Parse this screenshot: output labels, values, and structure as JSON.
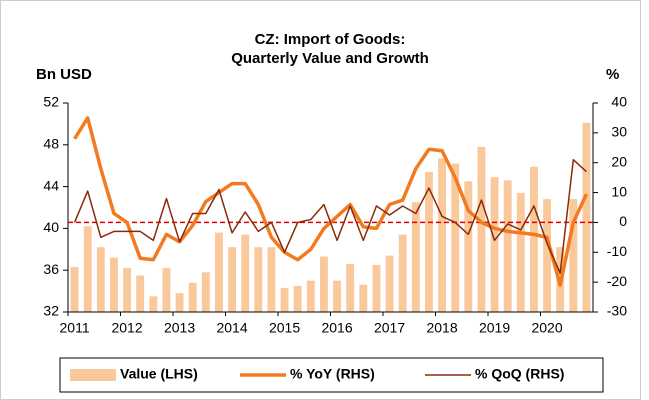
{
  "chart_data": {
    "type": "bar_line",
    "title": [
      "CZ: Import of Goods:",
      "Quarterly Value and Growth"
    ],
    "y_label": "Bn USD",
    "y2_label": "%",
    "categories": [
      "2011",
      null,
      null,
      null,
      "2012",
      null,
      null,
      null,
      "2013",
      null,
      null,
      null,
      "2014",
      null,
      null,
      null,
      "2015",
      null,
      null,
      null,
      "2016",
      null,
      null,
      null,
      "2017",
      null,
      null,
      null,
      "2018",
      null,
      null,
      null,
      "2019",
      null,
      null,
      null,
      "2020",
      null,
      null,
      null
    ],
    "series": [
      {
        "name": "Value (LHS)",
        "type": "bar",
        "color": "#f9c89b",
        "values": [
          36.3,
          40.2,
          38.2,
          37.2,
          36.2,
          35.5,
          33.5,
          36.2,
          33.8,
          34.8,
          35.8,
          39.6,
          38.2,
          39.4,
          38.2,
          38.2,
          34.3,
          34.5,
          35.0,
          37.3,
          35.0,
          36.6,
          34.6,
          36.5,
          37.4,
          39.4,
          42.5,
          45.4,
          46.7,
          46.2,
          44.5,
          47.8,
          44.9,
          44.6,
          43.4,
          45.9,
          42.8,
          38.2,
          42.8,
          50.1
        ]
      },
      {
        "name": "% YoY (RHS)",
        "type": "line",
        "axis": "y2",
        "color": "#f47a20",
        "values": [
          28,
          35,
          18,
          3,
          0,
          -12,
          -12.5,
          -4,
          -6.5,
          -1,
          7,
          10,
          13,
          13,
          6,
          -5,
          -10,
          -12.5,
          -9,
          -2,
          2,
          6,
          -1.5,
          -2,
          6,
          7.5,
          18,
          24.5,
          24,
          15,
          4,
          0,
          -2,
          -3,
          -3.5,
          -4,
          -5,
          -21,
          0,
          9.5
        ]
      },
      {
        "name": "% QoQ (RHS)",
        "type": "line",
        "axis": "y2",
        "color": "#8b2a0a",
        "values": [
          0,
          10.5,
          -5,
          -3,
          -3,
          -3,
          -6,
          8,
          -6.5,
          3,
          3,
          11,
          -3.5,
          3.5,
          -3,
          0,
          -10,
          0,
          1,
          6,
          -6,
          5.5,
          -6,
          5.5,
          2.5,
          5.5,
          3,
          11.5,
          2,
          0,
          -4,
          7.5,
          -6,
          -0.5,
          -2.5,
          5.5,
          -7,
          -17,
          21,
          17
        ]
      }
    ],
    "reference_line": {
      "value": 0,
      "axis": "y2",
      "color": "#e00000"
    },
    "ylim": [
      32,
      52
    ],
    "yticks": [
      32,
      36,
      40,
      44,
      48,
      52
    ],
    "y2lim": [
      -30,
      40
    ],
    "y2ticks": [
      -30,
      -20,
      -10,
      0,
      10,
      20,
      30,
      40
    ],
    "legend": "bottom"
  }
}
